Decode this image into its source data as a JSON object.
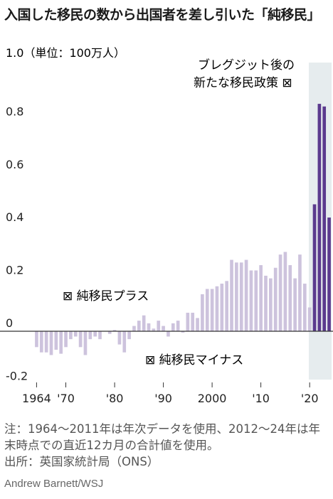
{
  "title": "入国した移民の数から出国者を差し引いた「純移民」",
  "chart_data": {
    "type": "bar",
    "unit_label": "1.0（単位：100万人）",
    "y_ticks": [
      "0.8",
      "0.6",
      "0.4",
      "0.2",
      "0",
      "-0.2"
    ],
    "x_ticks": [
      "1964",
      "'70",
      "'80",
      "'90",
      "2000",
      "'10",
      "'20"
    ],
    "ylim": [
      -0.2,
      1.0
    ],
    "years": [
      1964,
      1965,
      1966,
      1967,
      1968,
      1969,
      1970,
      1971,
      1972,
      1973,
      1974,
      1975,
      1976,
      1977,
      1978,
      1979,
      1980,
      1981,
      1982,
      1983,
      1984,
      1985,
      1986,
      1987,
      1988,
      1989,
      1990,
      1991,
      1992,
      1993,
      1994,
      1995,
      1996,
      1997,
      1998,
      1999,
      2000,
      2001,
      2002,
      2003,
      2004,
      2005,
      2006,
      2007,
      2008,
      2009,
      2010,
      2011,
      2012,
      2013,
      2014,
      2015,
      2016,
      2017,
      2018,
      2019,
      2020,
      2021,
      2022,
      2023,
      2024
    ],
    "values": [
      -0.06,
      -0.08,
      -0.08,
      -0.09,
      -0.07,
      -0.085,
      -0.06,
      -0.03,
      -0.02,
      -0.06,
      -0.09,
      -0.03,
      -0.02,
      -0.03,
      0.0,
      -0.01,
      0.005,
      -0.05,
      -0.08,
      -0.03,
      0.02,
      0.04,
      0.06,
      0.03,
      0.01,
      0.04,
      0.02,
      -0.02,
      0.03,
      0.04,
      -0.005,
      0.07,
      0.07,
      0.05,
      0.14,
      0.16,
      0.16,
      0.17,
      0.18,
      0.19,
      0.27,
      0.26,
      0.26,
      0.27,
      0.23,
      0.23,
      0.25,
      0.21,
      0.2,
      0.24,
      0.29,
      0.3,
      0.25,
      0.2,
      0.29,
      0.18,
      0.09,
      0.48,
      0.86,
      0.85,
      0.43
    ],
    "annotations": {
      "post_brexit": "ブレグジット後の新たな移民政策 ⊠",
      "plus": "⊠ 純移民プラス",
      "minus": "⊠ 純移民マイナス"
    },
    "colors": {
      "pre_brexit_bar": "#cdc3dd",
      "post_brexit_bar": "#5b3a8e",
      "shade": "#e6ecee",
      "axis": "#333333"
    }
  },
  "note": "注：1964〜2011年は年次データを使用、2012〜24年は年末時点での直近12カ月の合計値を使用。",
  "source": "出所：英国家統計局（ONS）",
  "credit": "Andrew Barnett/WSJ"
}
